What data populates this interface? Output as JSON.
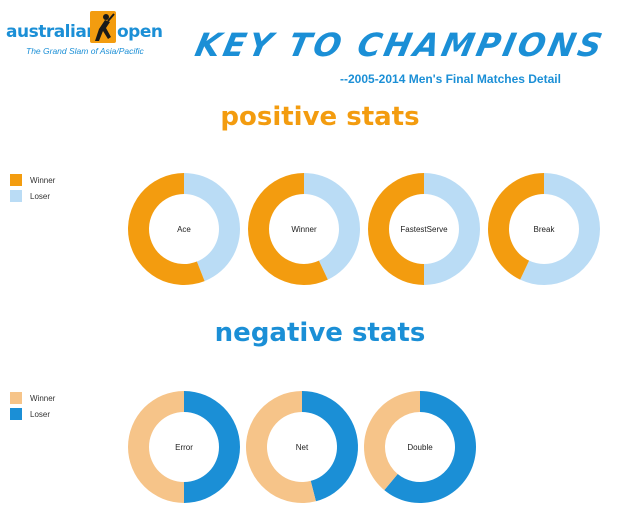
{
  "header": {
    "logo_left": "australian",
    "logo_right": "open",
    "logo_tagline": "The Grand Slam of Asia/Pacific",
    "title": "KEY TO CHAMPIONS",
    "subtitle": "--2005-2014 Men's Final Matches Detail"
  },
  "colors": {
    "winner_positive": "#f39c0f",
    "loser_positive": "#badcf5",
    "winner_negative": "#f6c489",
    "loser_negative": "#1b8fd6"
  },
  "chart_data": [
    {
      "type": "pie",
      "title": "positive stats",
      "legend": [
        "Winner",
        "Loser"
      ],
      "legend_placement": "left",
      "charts": [
        {
          "label": "Ace",
          "values": [
            56,
            44
          ]
        },
        {
          "label": "Winner",
          "values": [
            57,
            43
          ]
        },
        {
          "label": "FastestServe",
          "values": [
            50,
            50
          ]
        },
        {
          "label": "Break",
          "values": [
            43,
            57
          ]
        }
      ]
    },
    {
      "type": "pie",
      "title": "negative stats",
      "legend": [
        "Winner",
        "Loser"
      ],
      "legend_placement": "left",
      "charts": [
        {
          "label": "Error",
          "values": [
            50,
            50
          ]
        },
        {
          "label": "Net",
          "values": [
            54,
            46
          ]
        },
        {
          "label": "Double",
          "values": [
            39,
            61
          ]
        }
      ]
    }
  ]
}
